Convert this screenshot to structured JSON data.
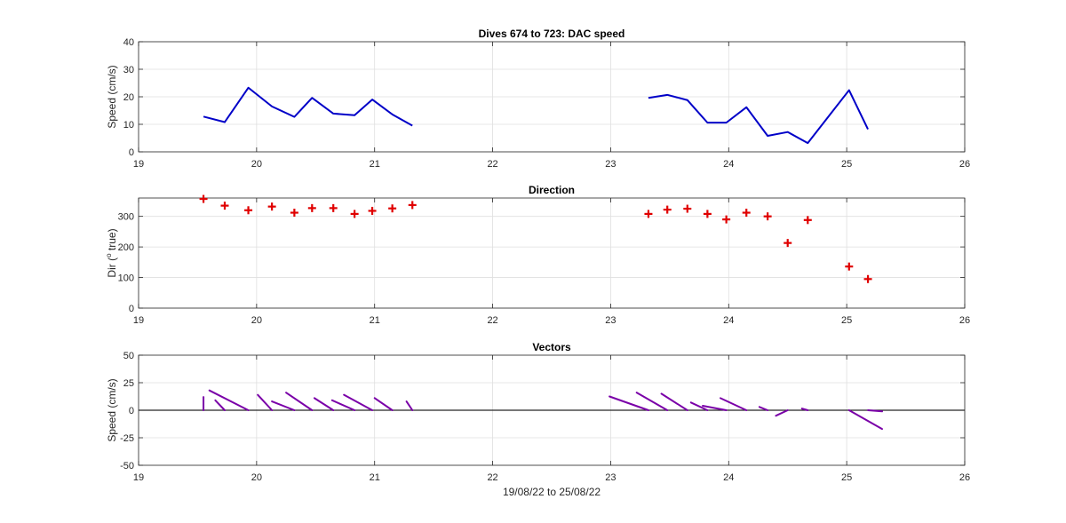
{
  "chart_data": [
    {
      "type": "line",
      "title": "Dives 674 to 723: DAC speed",
      "xlabel": "",
      "ylabel": "Speed (cm/s)",
      "xlim": [
        19,
        26
      ],
      "ylim": [
        0,
        40
      ],
      "xticks": [
        19,
        20,
        21,
        22,
        23,
        24,
        25,
        26
      ],
      "yticks": [
        0,
        10,
        20,
        30,
        40
      ],
      "grid": true,
      "color": "#0000c8",
      "series": [
        {
          "x": [
            19.55,
            19.73,
            19.93,
            20.13,
            20.32,
            20.47,
            20.65,
            20.83,
            20.98,
            21.15,
            21.32
          ],
          "values": [
            12.8,
            10.8,
            23.3,
            16.5,
            12.7,
            19.6,
            13.9,
            13.3,
            19.0,
            13.6,
            9.5
          ]
        },
        {
          "x": [
            23.32,
            23.48,
            23.65,
            23.82,
            23.98,
            24.15,
            24.33,
            24.5,
            24.67,
            25.02,
            25.18
          ],
          "values": [
            19.6,
            20.7,
            18.8,
            10.6,
            10.6,
            16.2,
            5.8,
            7.2,
            3.2,
            22.4,
            8.2
          ]
        }
      ]
    },
    {
      "type": "scatter",
      "title": "Direction",
      "xlabel": "",
      "ylabel": "Dir (° true)",
      "ylabel_parts": {
        "before": "Dir (",
        "sup": "o",
        "after": " true)"
      },
      "xlim": [
        19,
        26
      ],
      "ylim": [
        0,
        360
      ],
      "xticks": [
        19,
        20,
        21,
        22,
        23,
        24,
        25,
        26
      ],
      "yticks": [
        0,
        100,
        200,
        300
      ],
      "grid": true,
      "color": "#e00000",
      "marker": "+",
      "x": [
        19.55,
        19.73,
        19.93,
        20.13,
        20.32,
        20.47,
        20.65,
        20.83,
        20.98,
        21.15,
        21.32,
        23.32,
        23.48,
        23.65,
        23.82,
        23.98,
        24.15,
        24.33,
        24.5,
        24.67,
        25.02,
        25.18
      ],
      "values": [
        357,
        335,
        320,
        332,
        312,
        327,
        327,
        308,
        318,
        326,
        337,
        308,
        322,
        325,
        308,
        290,
        312,
        300,
        213,
        288,
        136,
        95
      ]
    },
    {
      "type": "vector",
      "title": "Vectors",
      "xlabel": "19/08/22 to 25/08/22",
      "ylabel": "Speed (cm/s)",
      "xlim": [
        19,
        26
      ],
      "ylim": [
        -50,
        50
      ],
      "xticks": [
        19,
        20,
        21,
        22,
        23,
        24,
        25,
        26
      ],
      "yticks": [
        -50,
        -25,
        0,
        25,
        50
      ],
      "grid": true,
      "color": "#7a00a8",
      "baseline": 0,
      "vectors": [
        {
          "x": 19.55,
          "u": 0.0,
          "v": 12.0
        },
        {
          "x": 19.73,
          "u": -0.08,
          "v": 9.0
        },
        {
          "x": 19.93,
          "u": -0.33,
          "v": 18.0
        },
        {
          "x": 20.13,
          "u": -0.12,
          "v": 14.0
        },
        {
          "x": 20.32,
          "u": -0.19,
          "v": 8.0
        },
        {
          "x": 20.47,
          "u": -0.22,
          "v": 16.0
        },
        {
          "x": 20.65,
          "u": -0.16,
          "v": 11.0
        },
        {
          "x": 20.83,
          "u": -0.19,
          "v": 9.0
        },
        {
          "x": 20.98,
          "u": -0.24,
          "v": 14.0
        },
        {
          "x": 21.15,
          "u": -0.15,
          "v": 11.0
        },
        {
          "x": 21.32,
          "u": -0.05,
          "v": 8.0
        },
        {
          "x": 23.32,
          "u": -0.33,
          "v": 12.5
        },
        {
          "x": 23.48,
          "u": -0.26,
          "v": 16.0
        },
        {
          "x": 23.65,
          "u": -0.22,
          "v": 15.0
        },
        {
          "x": 23.82,
          "u": -0.14,
          "v": 7.0
        },
        {
          "x": 23.98,
          "u": -0.2,
          "v": 4.0
        },
        {
          "x": 24.15,
          "u": -0.22,
          "v": 11.0
        },
        {
          "x": 24.33,
          "u": -0.07,
          "v": 3.0
        },
        {
          "x": 24.5,
          "u": -0.1,
          "v": -5.0
        },
        {
          "x": 24.67,
          "u": -0.05,
          "v": 1.5
        },
        {
          "x": 25.02,
          "u": 0.28,
          "v": -17.0
        },
        {
          "x": 25.18,
          "u": 0.12,
          "v": -1.0
        }
      ]
    }
  ]
}
